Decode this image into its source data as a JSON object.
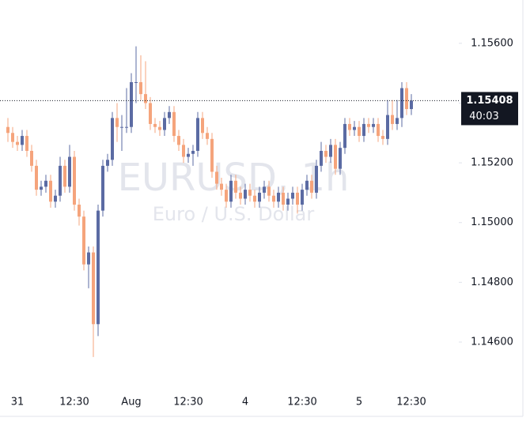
{
  "chart_data": {
    "type": "candlestick",
    "title": "EURUSD, 1h",
    "subtitle": "Euro / U.S. Dollar",
    "countdown": "40:03",
    "up_color": "#5b6ba3",
    "down_color": "#f5a47c",
    "categories": [
      null,
      null,
      "31",
      null,
      null,
      null,
      null,
      null,
      null,
      null,
      null,
      null,
      null,
      null,
      "12:30",
      null,
      null,
      null,
      null,
      null,
      null,
      null,
      null,
      null,
      null,
      null,
      "Aug",
      null,
      null,
      null,
      null,
      null,
      null,
      null,
      null,
      null,
      null,
      null,
      "12:30",
      null,
      null,
      null,
      null,
      null,
      null,
      null,
      null,
      null,
      null,
      null,
      "4",
      null,
      null,
      null,
      null,
      null,
      null,
      null,
      null,
      null,
      null,
      null,
      "12:30",
      null,
      null,
      null,
      null,
      null,
      null,
      null,
      null,
      null,
      null,
      null,
      "5",
      null,
      null,
      null,
      null,
      null,
      null,
      null,
      null,
      null,
      null,
      "12:30"
    ],
    "open": [
      1.1532,
      1.153,
      1.1527,
      1.1526,
      1.1529,
      1.1524,
      1.1519,
      1.1511,
      1.1512,
      1.1514,
      1.1507,
      1.1509,
      1.1519,
      1.1512,
      1.1522,
      1.1506,
      1.1502,
      1.1486,
      1.149,
      1.1466,
      1.1504,
      1.1519,
      1.1521,
      1.1535,
      1.1532,
      1.1532,
      1.1532,
      1.1547,
      1.1547,
      1.1543,
      1.154,
      1.1533,
      1.1532,
      1.1531,
      1.1535,
      1.1537,
      1.1529,
      1.1526,
      1.1522,
      1.1523,
      1.1524,
      1.1535,
      1.153,
      1.1528,
      1.1517,
      1.1513,
      1.1511,
      1.1507,
      1.1514,
      1.151,
      1.1508,
      1.1511,
      1.1509,
      1.1507,
      1.151,
      1.1512,
      1.1509,
      1.1507,
      1.151,
      1.1506,
      1.1508,
      1.151,
      1.1506,
      1.1511,
      1.1514,
      1.151,
      1.1519,
      1.1524,
      1.1522,
      1.1526,
      1.1518,
      1.1525,
      1.1533,
      1.1531,
      1.1532,
      1.1529,
      1.1533,
      1.1532,
      1.1533,
      1.1529,
      1.1528,
      1.1536,
      1.1533,
      1.1535,
      1.1545,
      1.1538
    ],
    "high": [
      1.1535,
      1.1532,
      1.1529,
      1.1531,
      1.1531,
      1.1526,
      1.1521,
      1.1514,
      1.1516,
      1.1516,
      1.1511,
      1.1522,
      1.1521,
      1.1526,
      1.1524,
      1.1508,
      1.1504,
      1.1492,
      1.1492,
      1.1506,
      1.1521,
      1.1523,
      1.1537,
      1.154,
      1.1536,
      1.1545,
      1.155,
      1.1559,
      1.1556,
      1.1554,
      1.1542,
      1.1535,
      1.1534,
      1.1537,
      1.1539,
      1.1539,
      1.1531,
      1.1528,
      1.1525,
      1.1526,
      1.1537,
      1.1537,
      1.1532,
      1.153,
      1.1519,
      1.1515,
      1.1513,
      1.1516,
      1.1516,
      1.1512,
      1.1513,
      1.1513,
      1.1511,
      1.1512,
      1.1514,
      1.1514,
      1.1511,
      1.1512,
      1.1512,
      1.151,
      1.1512,
      1.1512,
      1.1513,
      1.1516,
      1.1516,
      1.1521,
      1.1527,
      1.1526,
      1.1528,
      1.1528,
      1.1527,
      1.1535,
      1.1535,
      1.1534,
      1.1534,
      1.1535,
      1.1535,
      1.1535,
      1.1535,
      1.1531,
      1.1541,
      1.1541,
      1.1541,
      1.1547,
      1.1547,
      1.1543
    ],
    "low": [
      1.1527,
      1.1525,
      1.1524,
      1.1524,
      1.1522,
      1.1517,
      1.1509,
      1.1509,
      1.151,
      1.1505,
      1.1505,
      1.1507,
      1.151,
      1.151,
      1.1504,
      1.1499,
      1.1484,
      1.1478,
      1.1455,
      1.1462,
      1.1502,
      1.1517,
      1.1519,
      1.1527,
      1.1524,
      1.153,
      1.153,
      1.154,
      1.1541,
      1.1538,
      1.1531,
      1.153,
      1.1529,
      1.1529,
      1.1533,
      1.1527,
      1.1524,
      1.152,
      1.152,
      1.1519,
      1.1522,
      1.1528,
      1.1526,
      1.1515,
      1.1511,
      1.1509,
      1.1505,
      1.1505,
      1.1508,
      1.1506,
      1.1506,
      1.1507,
      1.1505,
      1.1505,
      1.1508,
      1.1507,
      1.1505,
      1.1505,
      1.1504,
      1.1504,
      1.1506,
      1.1503,
      1.1504,
      1.1509,
      1.1508,
      1.1508,
      1.1517,
      1.152,
      1.152,
      1.1516,
      1.1516,
      1.1523,
      1.1529,
      1.1529,
      1.1527,
      1.1527,
      1.153,
      1.153,
      1.1527,
      1.1526,
      1.1526,
      1.1531,
      1.1531,
      1.1532,
      1.1536,
      1.1536
    ],
    "close": [
      1.153,
      1.1527,
      1.1526,
      1.1529,
      1.1524,
      1.1519,
      1.1511,
      1.1512,
      1.1514,
      1.1507,
      1.1509,
      1.1519,
      1.1512,
      1.1522,
      1.1506,
      1.1502,
      1.1486,
      1.149,
      1.1466,
      1.1504,
      1.1519,
      1.1521,
      1.1535,
      1.1532,
      1.1532,
      1.1532,
      1.1547,
      1.1547,
      1.1543,
      1.154,
      1.1533,
      1.1532,
      1.1531,
      1.1535,
      1.1537,
      1.1529,
      1.1526,
      1.1522,
      1.1523,
      1.1524,
      1.1535,
      1.153,
      1.1528,
      1.1517,
      1.1513,
      1.1511,
      1.1507,
      1.1514,
      1.151,
      1.1508,
      1.1511,
      1.1509,
      1.1507,
      1.151,
      1.1512,
      1.1509,
      1.1507,
      1.151,
      1.1506,
      1.1508,
      1.151,
      1.1506,
      1.1511,
      1.1514,
      1.151,
      1.1519,
      1.1524,
      1.1522,
      1.1526,
      1.1518,
      1.1525,
      1.1533,
      1.1531,
      1.1532,
      1.1529,
      1.1533,
      1.1532,
      1.1533,
      1.1529,
      1.1528,
      1.1536,
      1.1533,
      1.1535,
      1.1545,
      1.1538,
      1.15408
    ],
    "ylim": [
      1.14436,
      1.15745
    ],
    "yticks": [
      {
        "value": 1.146,
        "label": "1.14600"
      },
      {
        "value": 1.148,
        "label": "1.14800"
      },
      {
        "value": 1.15,
        "label": "1.15000"
      },
      {
        "value": 1.152,
        "label": "1.15200"
      },
      {
        "value": 1.154,
        "label": "1.15400"
      },
      {
        "value": 1.156,
        "label": "1.15600"
      }
    ]
  }
}
